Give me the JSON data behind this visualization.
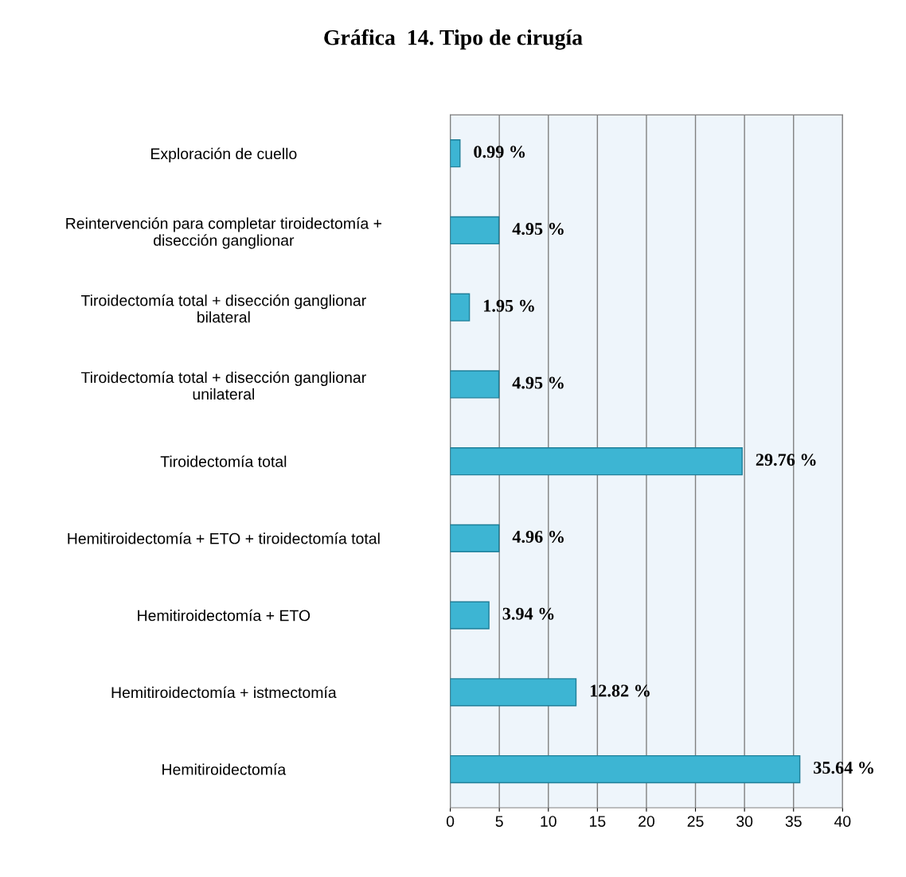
{
  "chart_data": {
    "type": "bar",
    "orientation": "horizontal",
    "title": "Gráfica  14. Tipo de cirugía",
    "categories": [
      "Exploración de cuello",
      "Reintervención para completar tiroidectomía + disección ganglionar",
      "Tiroidectomía total + disección ganglionar bilateral",
      "Tiroidectomía total + disección ganglionar unilateral",
      "Tiroidectomía total",
      "Hemitiroidectomía + ETO + tiroidectomía total",
      "Hemitiroidectomía + ETO",
      "Hemitiroidectomía + istmectomía",
      "Hemitiroidectomía"
    ],
    "values": [
      0.99,
      4.95,
      1.95,
      4.95,
      29.76,
      4.96,
      3.94,
      12.82,
      35.64
    ],
    "value_labels": [
      "0.99 %",
      "4.95 %",
      "1.95 %",
      "4.95 %",
      "29.76 %",
      "4.96 %",
      "3.94 %",
      "12.82 %",
      "35.64 %"
    ],
    "color": "#3db5d3",
    "xlim": [
      0,
      40
    ],
    "xticks": [
      0,
      5,
      10,
      15,
      20,
      25,
      30,
      35,
      40
    ],
    "grid": "x",
    "legend": false
  }
}
